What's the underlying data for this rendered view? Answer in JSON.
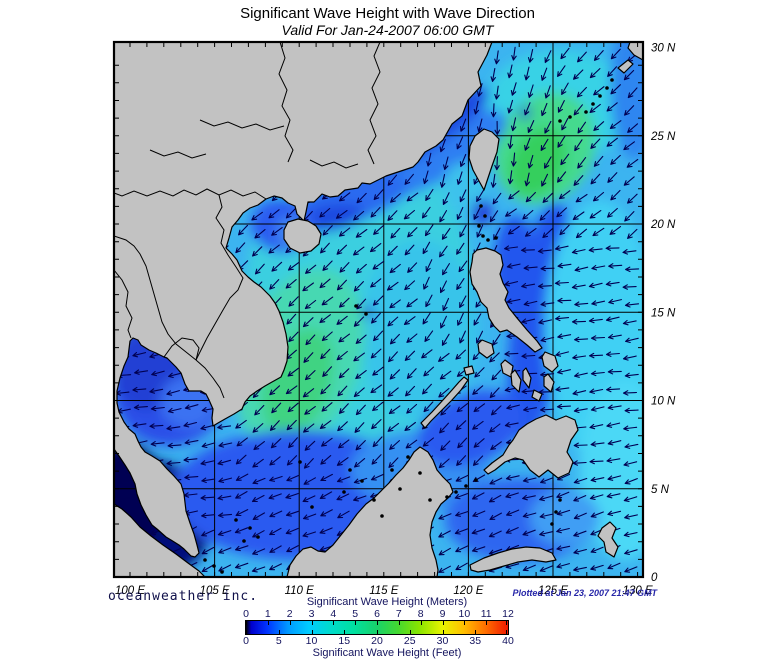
{
  "header": {
    "title": "Significant Wave Height with Wave Direction",
    "subtitle": "Valid For Jan-24-2007 06:00 GMT"
  },
  "footer": {
    "credit": "oceanweather inc.",
    "plotted_at": "Plotted at Jan 23, 2007 21:47 GMT"
  },
  "map": {
    "lon_labels": [
      {
        "label": "100 E",
        "lon": 100
      },
      {
        "label": "105 E",
        "lon": 105
      },
      {
        "label": "110 E",
        "lon": 110
      },
      {
        "label": "115 E",
        "lon": 115
      },
      {
        "label": "120 E",
        "lon": 120
      },
      {
        "label": "125 E",
        "lon": 125
      },
      {
        "label": "130 E",
        "lon": 130
      }
    ],
    "lat_labels": [
      {
        "label": "30 N",
        "lat": 30
      },
      {
        "label": "25 N",
        "lat": 25
      },
      {
        "label": "20 N",
        "lat": 20
      },
      {
        "label": "15 N",
        "lat": 15
      },
      {
        "label": "10 N",
        "lat": 10
      },
      {
        "label": "5 N",
        "lat": 5
      },
      {
        "label": "0",
        "lat": 0
      }
    ]
  },
  "legend": {
    "meters_label": "Significant Wave Height (Meters)",
    "meters_ticks": [
      "0",
      "1",
      "2",
      "3",
      "4",
      "5",
      "6",
      "7",
      "8",
      "9",
      "10",
      "11",
      "12"
    ],
    "feet_label": "Significant Wave Height (Feet)",
    "feet_ticks": [
      "0",
      "5",
      "10",
      "15",
      "20",
      "25",
      "30",
      "35",
      "40"
    ]
  },
  "palette": {
    "land": "#c2c2c2",
    "coast": "#000000",
    "sea_base": "#3cb4f0",
    "arrow": "#000052",
    "grid": "#000000",
    "frame": "#000000",
    "colorbar_stops": "#000000 0%, #0000cc 2%, #0033ff 8%, #0099ff 16%, #00ccff 24%, #00dcc8 33%, #00e0a0 41%, #19d269 50%, #44d830 58%, #88e400 66%, #e8f400 75%, #ffc000 83%, #ff7300 91%, #f01800 100%"
  }
}
